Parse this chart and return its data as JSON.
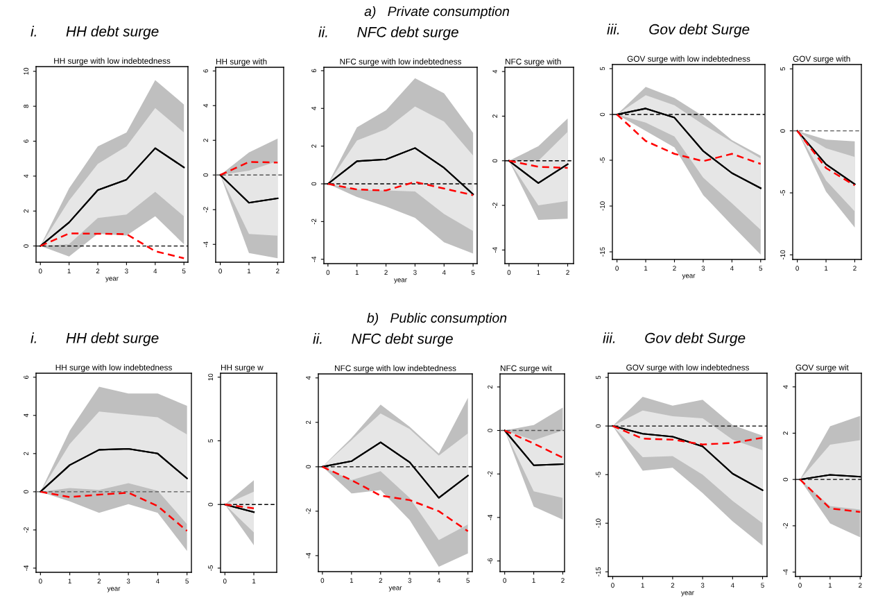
{
  "chart_data": [
    {
      "type": "line",
      "title": "HH surge with low indebtedness",
      "xlabel": "year",
      "annotations": [
        "a)   Private consumption",
        "i.       HH debt surge"
      ],
      "x": [
        0,
        1,
        2,
        3,
        4,
        5
      ],
      "xlim": [
        -0.15,
        5.14
      ],
      "xticks": [
        0,
        1,
        2,
        3,
        4,
        5
      ],
      "ylim": [
        -0.93,
        10.27
      ],
      "yticks": [
        0,
        2,
        4,
        6,
        8,
        10
      ],
      "grid": false,
      "legend": false,
      "ref_lines": [
        {
          "axis": "y",
          "value": 0,
          "color": "#000000",
          "line_style": "dashed"
        }
      ],
      "series": [
        {
          "type": "line",
          "color": "#000000",
          "line_style": "solid",
          "values": [
            0,
            1.35,
            3.2,
            3.8,
            5.6,
            4.5
          ],
          "lower": [
            0,
            -0.6,
            0.7,
            0.6,
            1.7,
            0.1
          ],
          "upper": [
            0,
            3.3,
            5.7,
            6.5,
            9.5,
            8.1
          ]
        },
        {
          "type": "line",
          "color": "#000000",
          "line_style": "solid",
          "values": [
            0,
            1.35,
            3.2,
            3.8,
            5.6,
            4.5
          ],
          "lower": [
            0,
            0.1,
            1.6,
            1.8,
            3.1,
            1.7
          ],
          "upper": [
            0,
            2.6,
            4.7,
            5.7,
            7.9,
            6.5
          ]
        },
        {
          "type": "line",
          "color": "#ff0000",
          "line_style": "dashed",
          "values": [
            0,
            0.72,
            0.7,
            0.68,
            -0.3,
            -0.7
          ]
        }
      ]
    },
    {
      "type": "line",
      "title": "HH surge with",
      "x": [
        0,
        1,
        2
      ],
      "xlim": [
        -0.16,
        2.21
      ],
      "xticks": [
        0,
        1,
        2
      ],
      "ylim": [
        -5.03,
        6.21
      ],
      "yticks": [
        -4,
        -2,
        0,
        2,
        4,
        6
      ],
      "grid": false,
      "legend": false,
      "ref_lines": [
        {
          "axis": "y",
          "value": 0,
          "color": "#555555",
          "line_style": "dashed"
        }
      ],
      "series": [
        {
          "type": "line",
          "color": "#000000",
          "line_style": "solid",
          "values": [
            0,
            -1.6,
            -1.35
          ],
          "lower": [
            0,
            -4.5,
            -4.8
          ],
          "upper": [
            0,
            1.3,
            2.1
          ]
        },
        {
          "type": "line",
          "color": "#000000",
          "line_style": "solid",
          "values": [
            0,
            -1.6,
            -1.35
          ],
          "lower": [
            0,
            -3.4,
            -3.5
          ],
          "upper": [
            0,
            0.25,
            0.8
          ]
        },
        {
          "type": "line",
          "color": "#ff0000",
          "line_style": "dashed",
          "values": [
            0,
            0.75,
            0.72
          ]
        }
      ]
    },
    {
      "type": "line",
      "title": "NFC surge with low indebtedness",
      "xlabel": "year",
      "annotations": [
        "ii.       NFC debt surge"
      ],
      "x": [
        0,
        1,
        2,
        3,
        4,
        5
      ],
      "xlim": [
        -0.14,
        5.14
      ],
      "xticks": [
        0,
        1,
        2,
        3,
        4,
        5
      ],
      "ylim": [
        -4.23,
        6.18
      ],
      "yticks": [
        -4,
        -2,
        0,
        2,
        4,
        6
      ],
      "grid": false,
      "legend": false,
      "ref_lines": [
        {
          "axis": "y",
          "value": 0,
          "color": "#000000",
          "line_style": "dashed"
        }
      ],
      "series": [
        {
          "type": "line",
          "color": "#000000",
          "line_style": "solid",
          "values": [
            0,
            1.2,
            1.3,
            1.9,
            0.85,
            -0.55
          ],
          "lower": [
            0,
            -0.7,
            -1.2,
            -1.8,
            -3.1,
            -3.7
          ],
          "upper": [
            0,
            3.0,
            3.9,
            5.6,
            4.8,
            2.7
          ]
        },
        {
          "type": "line",
          "color": "#000000",
          "line_style": "solid",
          "values": [
            0,
            1.2,
            1.3,
            1.9,
            0.85,
            -0.55
          ],
          "lower": [
            0,
            -0.3,
            -0.35,
            -0.4,
            -1.6,
            -2.5
          ],
          "upper": [
            0,
            2.3,
            2.9,
            4.1,
            3.3,
            1.5
          ]
        },
        {
          "type": "line",
          "color": "#ff0000",
          "line_style": "dashed",
          "values": [
            0,
            -0.3,
            -0.35,
            0.1,
            -0.25,
            -0.6
          ]
        }
      ]
    },
    {
      "type": "line",
      "title": "NFC surge with",
      "x": [
        0,
        1,
        2
      ],
      "xlim": [
        -0.14,
        2.2
      ],
      "xticks": [
        0,
        1,
        2
      ],
      "ylim": [
        -4.61,
        4.19
      ],
      "yticks": [
        -4,
        -2,
        0,
        2,
        4
      ],
      "grid": false,
      "legend": false,
      "ref_lines": [
        {
          "axis": "y",
          "value": 0,
          "color": "#000000",
          "line_style": "dashed"
        }
      ],
      "series": [
        {
          "type": "line",
          "color": "#000000",
          "line_style": "solid",
          "values": [
            0,
            -1.0,
            -0.15
          ],
          "lower": [
            0,
            -2.65,
            -2.6
          ],
          "upper": [
            0,
            0.65,
            1.9
          ]
        },
        {
          "type": "line",
          "color": "#000000",
          "line_style": "solid",
          "values": [
            0,
            -1.0,
            -0.15
          ],
          "lower": [
            0,
            -2.0,
            -1.8
          ],
          "upper": [
            0,
            0,
            1.3
          ]
        },
        {
          "type": "line",
          "color": "#ff0000",
          "line_style": "dashed",
          "values": [
            0,
            -0.27,
            -0.32
          ]
        }
      ]
    },
    {
      "type": "line",
      "title": "GOV surge with low indebtedness",
      "xlabel": "year",
      "annotations": [
        "iii.       Gov debt Surge"
      ],
      "x": [
        0,
        1,
        2,
        3,
        4,
        5
      ],
      "xlim": [
        -0.16,
        5.15
      ],
      "xticks": [
        0,
        1,
        2,
        3,
        4,
        5
      ],
      "ylim": [
        -15.83,
        5.45
      ],
      "yticks": [
        -15,
        -10,
        -5,
        0,
        5
      ],
      "grid": false,
      "legend": false,
      "ref_lines": [
        {
          "axis": "y",
          "value": 0,
          "color": "#000000",
          "line_style": "dashed"
        }
      ],
      "series": [
        {
          "type": "line",
          "color": "#000000",
          "line_style": "solid",
          "values": [
            0,
            0.65,
            -0.35,
            -4.0,
            -6.4,
            -8.05
          ],
          "lower": [
            0,
            -1.8,
            -3.6,
            -8.8,
            -12.1,
            -15.3
          ],
          "upper": [
            0,
            3.0,
            1.8,
            -0.2,
            -2.8,
            -4.5
          ]
        },
        {
          "type": "line",
          "color": "#000000",
          "line_style": "solid",
          "values": [
            0,
            0.65,
            -0.35,
            -4.0,
            -6.4,
            -8.05
          ],
          "lower": [
            0,
            -0.9,
            -2.4,
            -6.9,
            -9.7,
            -12.6
          ],
          "upper": [
            0,
            2.1,
            1.0,
            -1.1,
            -3.0,
            -4.8
          ]
        },
        {
          "type": "line",
          "color": "#ff0000",
          "line_style": "dashed",
          "values": [
            0,
            -2.9,
            -4.3,
            -5.1,
            -4.3,
            -5.4
          ]
        }
      ]
    },
    {
      "type": "line",
      "title": "GOV surge with",
      "x": [
        0,
        1,
        2
      ],
      "xlim": [
        -0.16,
        2.23
      ],
      "xticks": [
        0,
        1,
        2
      ],
      "ylim": [
        -10.37,
        5.35
      ],
      "yticks": [
        -10,
        -5,
        0,
        5
      ],
      "grid": false,
      "legend": false,
      "ref_lines": [
        {
          "axis": "y",
          "value": 0,
          "color": "#555555",
          "line_style": "dashed"
        }
      ],
      "series": [
        {
          "type": "line",
          "color": "#000000",
          "line_style": "solid",
          "values": [
            0,
            -2.7,
            -4.3
          ],
          "lower": [
            0,
            -4.9,
            -7.8
          ],
          "upper": [
            0,
            -0.7,
            -0.85
          ]
        },
        {
          "type": "line",
          "color": "#000000",
          "line_style": "solid",
          "values": [
            0,
            -2.7,
            -4.3
          ],
          "lower": [
            0,
            -4.0,
            -6.5
          ],
          "upper": [
            0,
            -1.4,
            -2.1
          ]
        },
        {
          "type": "line",
          "color": "#ff0000",
          "line_style": "dashed",
          "values": [
            0,
            -3.0,
            -4.4
          ]
        }
      ]
    },
    {
      "type": "line",
      "title": "HH surge with low indebtedness",
      "xlabel": "year",
      "annotations": [
        "b)   Public consumption",
        "i.       HH debt surge"
      ],
      "x": [
        0,
        1,
        2,
        3,
        4,
        5
      ],
      "xlim": [
        -0.15,
        5.15
      ],
      "xticks": [
        0,
        1,
        2,
        3,
        4,
        5
      ],
      "ylim": [
        -4.22,
        6.21
      ],
      "yticks": [
        -4,
        -2,
        0,
        2,
        4,
        6
      ],
      "grid": false,
      "legend": false,
      "ref_lines": [
        {
          "axis": "y",
          "value": 0,
          "color": "#555555",
          "line_style": "dashed"
        }
      ],
      "series": [
        {
          "type": "line",
          "color": "#000000",
          "line_style": "solid",
          "values": [
            0,
            1.4,
            2.2,
            2.25,
            2.0,
            0.7
          ],
          "lower": [
            0,
            -0.5,
            -1.1,
            -0.65,
            -1.1,
            -3.1
          ],
          "upper": [
            0,
            3.2,
            5.5,
            5.15,
            5.15,
            4.5
          ]
        },
        {
          "type": "line",
          "color": "#000000",
          "line_style": "solid",
          "values": [
            0,
            1.4,
            2.2,
            2.25,
            2.0,
            0.7
          ],
          "lower": [
            0,
            0.2,
            0.1,
            0.45,
            0.05,
            -1.7
          ],
          "upper": [
            0,
            2.5,
            4.2,
            4.05,
            3.9,
            3.0
          ]
        },
        {
          "type": "line",
          "color": "#ff0000",
          "line_style": "dashed",
          "values": [
            0,
            -0.28,
            -0.15,
            -0.05,
            -0.75,
            -2.05
          ]
        }
      ]
    },
    {
      "type": "line",
      "title": "HH surge w",
      "x": [
        0,
        1
      ],
      "xlim": [
        -0.15,
        1.79
      ],
      "xticks": [
        0,
        1
      ],
      "ylim": [
        -5.33,
        10.31
      ],
      "yticks": [
        -5,
        0,
        5,
        10
      ],
      "grid": false,
      "legend": false,
      "ref_lines": [
        {
          "axis": "y",
          "value": 0,
          "color": "#000000",
          "line_style": "dashed"
        }
      ],
      "series": [
        {
          "type": "line",
          "color": "#000000",
          "line_style": "solid",
          "values": [
            0,
            -0.6
          ],
          "lower": [
            0,
            -3.2
          ],
          "upper": [
            0,
            1.9
          ]
        },
        {
          "type": "line",
          "color": "#000000",
          "line_style": "solid",
          "values": [
            0,
            -0.6
          ],
          "lower": [
            0,
            -2.2
          ],
          "upper": [
            0,
            1.0
          ]
        },
        {
          "type": "line",
          "color": "#ff0000",
          "line_style": "dashed",
          "values": [
            0,
            -0.3
          ]
        }
      ]
    },
    {
      "type": "line",
      "title": "NFC surge with low indebtedness",
      "xlabel": "year",
      "annotations": [
        "ii.       NFC debt surge"
      ],
      "x": [
        0,
        1,
        2,
        3,
        4,
        5
      ],
      "xlim": [
        -0.14,
        5.15
      ],
      "xticks": [
        0,
        1,
        2,
        3,
        4,
        5
      ],
      "ylim": [
        -4.72,
        4.18
      ],
      "yticks": [
        -4,
        -2,
        0,
        2,
        4
      ],
      "grid": false,
      "legend": false,
      "ref_lines": [
        {
          "axis": "y",
          "value": 0,
          "color": "#000000",
          "line_style": "dashed"
        }
      ],
      "series": [
        {
          "type": "line",
          "color": "#000000",
          "line_style": "solid",
          "values": [
            0,
            0.25,
            1.1,
            0.2,
            -1.4,
            -0.4
          ],
          "lower": [
            0,
            -1.2,
            -1.05,
            -2.4,
            -4.5,
            -3.9
          ],
          "upper": [
            0,
            1.3,
            2.8,
            1.8,
            0.6,
            3.1
          ]
        },
        {
          "type": "line",
          "color": "#000000",
          "line_style": "solid",
          "values": [
            0,
            0.25,
            1.1,
            0.2,
            -1.4,
            -0.4
          ],
          "lower": [
            0,
            -0.6,
            -0.2,
            -1.4,
            -3.3,
            -2.6
          ],
          "upper": [
            0,
            1.2,
            2.4,
            1.7,
            0.5,
            1.5
          ]
        },
        {
          "type": "line",
          "color": "#ff0000",
          "line_style": "dashed",
          "values": [
            0,
            -0.6,
            -1.3,
            -1.5,
            -2.0,
            -2.9
          ]
        }
      ]
    },
    {
      "type": "line",
      "title": "NFC surge wit",
      "x": [
        0,
        1,
        2
      ],
      "xlim": [
        -0.16,
        2.06
      ],
      "xticks": [
        0,
        1,
        2
      ],
      "ylim": [
        -6.49,
        2.6
      ],
      "yticks": [
        -6,
        -4,
        -2,
        0,
        2
      ],
      "grid": false,
      "legend": false,
      "ref_lines": [
        {
          "axis": "y",
          "value": 0,
          "color": "#555555",
          "line_style": "dashed"
        }
      ],
      "series": [
        {
          "type": "line",
          "color": "#000000",
          "line_style": "solid",
          "values": [
            0,
            -1.6,
            -1.55
          ],
          "lower": [
            0,
            -3.5,
            -4.1
          ],
          "upper": [
            0,
            0.25,
            1.05
          ]
        },
        {
          "type": "line",
          "color": "#000000",
          "line_style": "solid",
          "values": [
            0,
            -1.6,
            -1.55
          ],
          "lower": [
            0,
            -2.8,
            -3.1
          ],
          "upper": [
            0,
            -0.45,
            0
          ]
        },
        {
          "type": "line",
          "color": "#ff0000",
          "line_style": "dashed",
          "values": [
            0,
            -0.6,
            -1.25
          ]
        }
      ]
    },
    {
      "type": "line",
      "title": "GOV surge with low indebtedness",
      "xlabel": "year",
      "annotations": [
        "iii.       Gov debt Surge"
      ],
      "x": [
        0,
        1,
        2,
        3,
        4,
        5
      ],
      "xlim": [
        -0.15,
        5.15
      ],
      "xticks": [
        0,
        1,
        2,
        3,
        4,
        5
      ],
      "ylim": [
        -15.48,
        5.43
      ],
      "yticks": [
        -15,
        -10,
        -5,
        0,
        5
      ],
      "grid": false,
      "legend": false,
      "ref_lines": [
        {
          "axis": "y",
          "value": 0,
          "color": "#000000",
          "line_style": "dashed"
        }
      ],
      "series": [
        {
          "type": "line",
          "color": "#000000",
          "line_style": "solid",
          "values": [
            0,
            -0.8,
            -1.1,
            -2.1,
            -4.9,
            -6.6
          ],
          "lower": [
            0,
            -4.6,
            -4.3,
            -6.9,
            -9.8,
            -12.3
          ],
          "upper": [
            0,
            3.0,
            2.1,
            2.7,
            0.1,
            -1.0
          ]
        },
        {
          "type": "line",
          "color": "#000000",
          "line_style": "solid",
          "values": [
            0,
            -0.8,
            -1.1,
            -2.1,
            -4.9,
            -6.6
          ],
          "lower": [
            0,
            -3.2,
            -3.1,
            -5.0,
            -7.7,
            -10.0
          ],
          "upper": [
            0,
            1.6,
            1.0,
            0.8,
            -1.4,
            -2.5
          ]
        },
        {
          "type": "line",
          "color": "#ff0000",
          "line_style": "dashed",
          "values": [
            0,
            -1.3,
            -1.4,
            -1.9,
            -1.75,
            -1.2
          ]
        }
      ]
    },
    {
      "type": "line",
      "title": "GOV surge wit",
      "x": [
        0,
        1,
        2
      ],
      "xlim": [
        -0.15,
        2.04
      ],
      "xticks": [
        0,
        1,
        2
      ],
      "ylim": [
        -4.19,
        4.59
      ],
      "yticks": [
        -4,
        -2,
        0,
        2,
        4
      ],
      "grid": false,
      "legend": false,
      "ref_lines": [
        {
          "axis": "y",
          "value": 0,
          "color": "#000000",
          "line_style": "dashed"
        }
      ],
      "series": [
        {
          "type": "line",
          "color": "#000000",
          "line_style": "solid",
          "values": [
            0,
            0.2,
            0.12
          ],
          "lower": [
            0,
            -1.9,
            -2.5
          ],
          "upper": [
            0,
            2.3,
            2.75
          ]
        },
        {
          "type": "line",
          "color": "#000000",
          "line_style": "solid",
          "values": [
            0,
            0.2,
            0.12
          ],
          "lower": [
            0,
            -1.15,
            -1.3
          ],
          "upper": [
            0,
            1.5,
            1.7
          ]
        },
        {
          "type": "line",
          "color": "#ff0000",
          "line_style": "dashed",
          "values": [
            0,
            -1.25,
            -1.4
          ]
        }
      ]
    }
  ]
}
